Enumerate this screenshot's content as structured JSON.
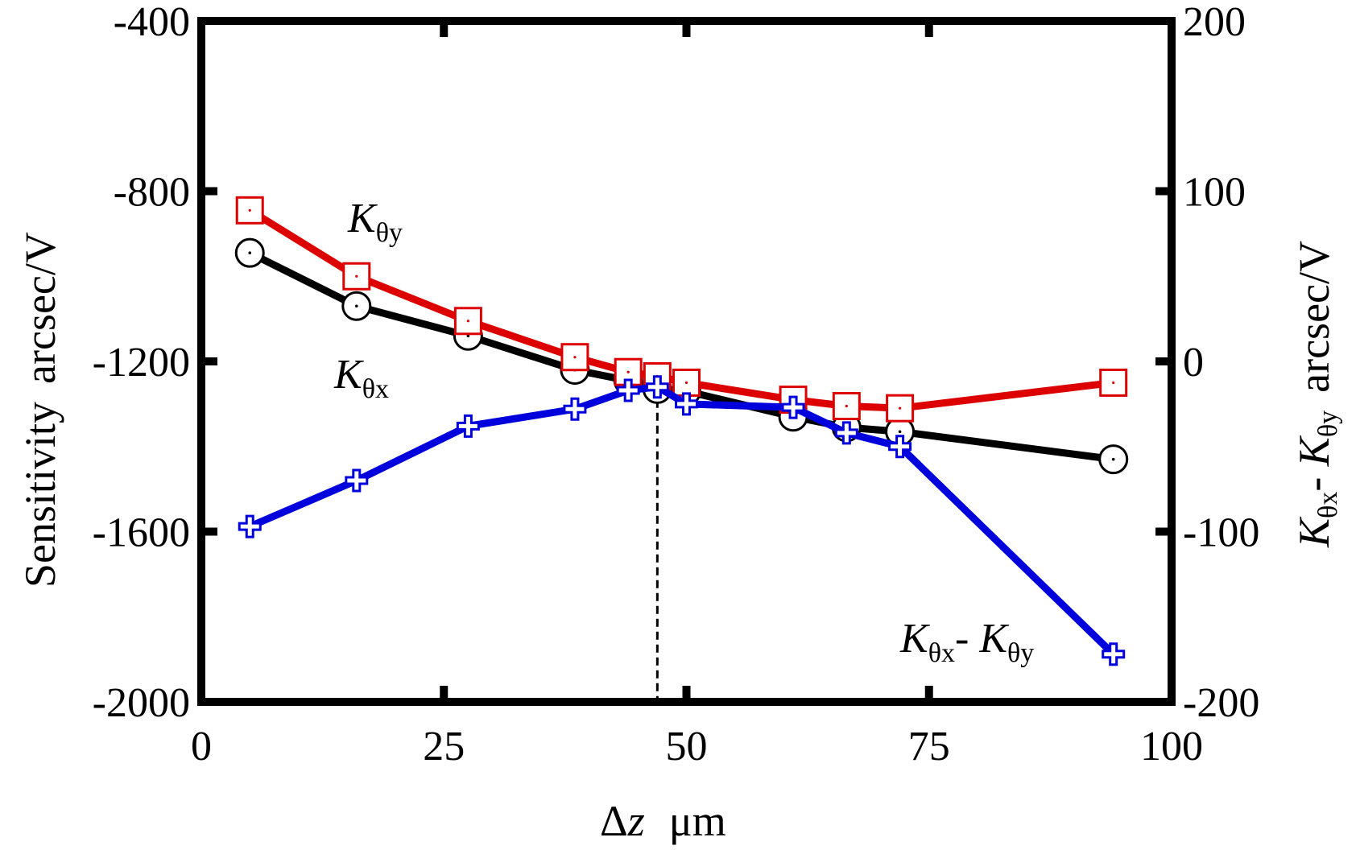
{
  "chart_data": {
    "type": "line",
    "title": "",
    "xlabel": {
      "symbol": "Δ",
      "variable": "z",
      "unit": "μm"
    },
    "ylabel_left": {
      "text": "Sensitivity",
      "unit": "arcsec/V"
    },
    "ylabel_right": {
      "k1": "K",
      "s1": "θx",
      "sep": "- ",
      "k2": "K",
      "s2": "θy",
      "unit": "arcsec/V"
    },
    "xlim": [
      0,
      100
    ],
    "ylim_left": [
      -2000,
      -400
    ],
    "ylim_right": [
      -200,
      200
    ],
    "x_ticks": [
      0,
      25,
      50,
      75,
      100
    ],
    "y_ticks_left": [
      -2000,
      -1600,
      -1200,
      -800,
      -400
    ],
    "y_ticks_right": [
      -200,
      -100,
      0,
      100,
      200
    ],
    "grid": false,
    "vertical_marker_x": 47,
    "series": [
      {
        "name": "Kθy",
        "axis": "left",
        "color": "#dd0000",
        "marker": "square",
        "x": [
          5,
          16,
          27.5,
          38.5,
          44,
          47,
          50,
          61,
          66.5,
          72,
          94
        ],
        "y": [
          -845,
          -1000,
          -1105,
          -1190,
          -1225,
          -1235,
          -1250,
          -1290,
          -1305,
          -1310,
          -1250
        ]
      },
      {
        "name": "Kθx",
        "axis": "left",
        "color": "#000000",
        "marker": "circle",
        "x": [
          5,
          16,
          27.5,
          38.5,
          44,
          47,
          50,
          61,
          66.5,
          72,
          94
        ],
        "y": [
          -945,
          -1070,
          -1140,
          -1220,
          -1245,
          -1265,
          -1270,
          -1330,
          -1355,
          -1365,
          -1430
        ]
      },
      {
        "name": "Kθx-Kθy",
        "axis": "right",
        "color": "#0000dd",
        "marker": "plus",
        "x": [
          5,
          16,
          27.5,
          38.5,
          44,
          47,
          50,
          61,
          66.5,
          72,
          94
        ],
        "y": [
          -97,
          -70,
          -38,
          -28,
          -17,
          -15,
          -25,
          -27,
          -42,
          -50,
          -172
        ]
      }
    ],
    "annotations": {
      "kthy_label": {
        "k": "K",
        "sub": "θy"
      },
      "kthx_label": {
        "k": "K",
        "sub": "θx"
      },
      "diff_label": {
        "k1": "K",
        "s1": "θx",
        "sep": "- ",
        "k2": "K",
        "s2": "θy"
      }
    }
  }
}
